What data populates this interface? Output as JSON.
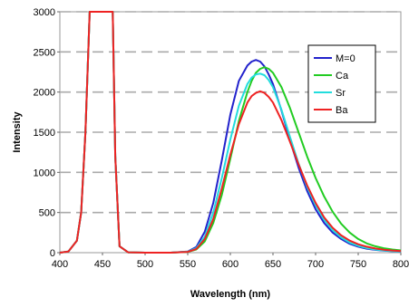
{
  "chart_data": {
    "type": "line",
    "xlabel": "Wavelength (nm)",
    "ylabel": "Intensity",
    "xlim": [
      400,
      800
    ],
    "ylim": [
      0,
      3000
    ],
    "x_ticks": [
      400,
      450,
      500,
      550,
      600,
      650,
      700,
      750,
      800
    ],
    "y_ticks": [
      0,
      500,
      1000,
      1500,
      2000,
      2500,
      3000
    ],
    "grid": "horizontal dashed",
    "legend_position": "top-right",
    "x": [
      400,
      410,
      420,
      425,
      430,
      435,
      438,
      440,
      442,
      445,
      450,
      455,
      458,
      460,
      462,
      465,
      470,
      480,
      500,
      530,
      550,
      560,
      570,
      580,
      590,
      600,
      610,
      620,
      625,
      630,
      635,
      640,
      645,
      650,
      660,
      670,
      680,
      690,
      700,
      710,
      720,
      730,
      740,
      750,
      760,
      770,
      780,
      790,
      800
    ],
    "series": [
      {
        "name": "M=0",
        "color": "#2222cc",
        "values": [
          0,
          15,
          150,
          500,
          1500,
          3000,
          3000,
          3000,
          3000,
          3000,
          3000,
          3000,
          3000,
          3000,
          3000,
          1200,
          80,
          5,
          0,
          0,
          15,
          70,
          260,
          620,
          1150,
          1720,
          2140,
          2330,
          2380,
          2400,
          2380,
          2320,
          2220,
          2100,
          1770,
          1400,
          1060,
          770,
          540,
          370,
          250,
          170,
          110,
          75,
          50,
          35,
          25,
          18,
          12
        ]
      },
      {
        "name": "Ca",
        "color": "#22cc22",
        "values": [
          0,
          15,
          150,
          500,
          1500,
          3000,
          3000,
          3000,
          3000,
          3000,
          3000,
          3000,
          3000,
          3000,
          3000,
          1200,
          80,
          5,
          0,
          0,
          10,
          40,
          140,
          370,
          720,
          1170,
          1640,
          2000,
          2140,
          2240,
          2290,
          2310,
          2290,
          2240,
          2060,
          1800,
          1500,
          1200,
          930,
          700,
          510,
          360,
          250,
          170,
          115,
          80,
          55,
          40,
          28
        ]
      },
      {
        "name": "Sr",
        "color": "#22dddd",
        "values": [
          0,
          15,
          150,
          500,
          1500,
          3000,
          3000,
          3000,
          3000,
          3000,
          3000,
          3000,
          3000,
          3000,
          3000,
          1200,
          80,
          5,
          0,
          0,
          12,
          55,
          200,
          500,
          930,
          1410,
          1830,
          2100,
          2180,
          2220,
          2230,
          2210,
          2150,
          2060,
          1780,
          1440,
          1110,
          820,
          590,
          410,
          280,
          190,
          125,
          85,
          58,
          40,
          28,
          20,
          14
        ]
      },
      {
        "name": "Ba",
        "color": "#ee2222",
        "values": [
          0,
          15,
          150,
          500,
          1500,
          3000,
          3000,
          3000,
          3000,
          3000,
          3000,
          3000,
          3000,
          3000,
          3000,
          1200,
          80,
          5,
          0,
          0,
          10,
          45,
          170,
          420,
          800,
          1220,
          1600,
          1870,
          1950,
          1990,
          2010,
          1990,
          1940,
          1870,
          1650,
          1380,
          1100,
          840,
          620,
          440,
          310,
          215,
          150,
          105,
          75,
          52,
          37,
          27,
          20
        ]
      }
    ]
  }
}
